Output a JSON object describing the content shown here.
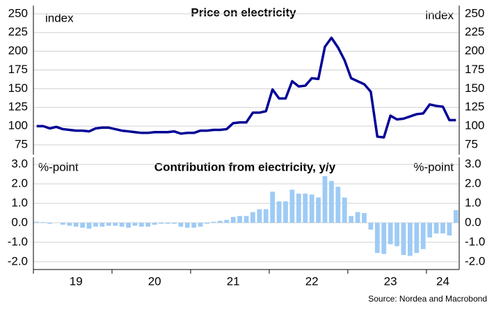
{
  "chart_data": [
    {
      "type": "line",
      "title": "Price on electricity",
      "ylabel": "index",
      "color": "#000096",
      "values": [
        100,
        100,
        97,
        99,
        96,
        95,
        94,
        94,
        93,
        97,
        98,
        98,
        96,
        94,
        93,
        92,
        91,
        91,
        92,
        92,
        92,
        93,
        90,
        91,
        91,
        94,
        94,
        95,
        95,
        96,
        104,
        105,
        105,
        118,
        118,
        120,
        149,
        137,
        137,
        160,
        153,
        154,
        164,
        163,
        206,
        218,
        205,
        188,
        164,
        160,
        156,
        146,
        86,
        85,
        114,
        109,
        110,
        113,
        116,
        117,
        129,
        127,
        126,
        108,
        108
      ],
      "ylim": [
        62,
        261
      ],
      "yticks": [
        75,
        100,
        125,
        150,
        175,
        200,
        225,
        250
      ],
      "grid": true
    },
    {
      "type": "bar",
      "title": "Contribution from electricity, y/y",
      "ylabel": "%-point",
      "color": "#9ecbf5",
      "categories": [
        null,
        null,
        null,
        null,
        null,
        null,
        "19",
        null,
        null,
        null,
        null,
        null,
        null,
        null,
        null,
        null,
        null,
        null,
        "20",
        null,
        null,
        null,
        null,
        null,
        null,
        null,
        null,
        null,
        null,
        null,
        "21",
        null,
        null,
        null,
        null,
        null,
        null,
        null,
        null,
        null,
        null,
        null,
        "22",
        null,
        null,
        null,
        null,
        null,
        null,
        null,
        null,
        null,
        null,
        null,
        "23",
        null,
        null,
        null,
        null,
        null,
        null,
        null,
        "24",
        null,
        null
      ],
      "values": [
        0.05,
        0.03,
        -0.05,
        0,
        -0.1,
        -0.15,
        -0.2,
        -0.25,
        -0.3,
        -0.2,
        -0.2,
        -0.15,
        -0.15,
        -0.2,
        -0.25,
        -0.15,
        -0.2,
        -0.2,
        -0.1,
        -0.05,
        -0.05,
        -0.05,
        -0.2,
        -0.25,
        -0.25,
        -0.2,
        -0.05,
        0.05,
        0.1,
        0.15,
        0.3,
        0.35,
        0.35,
        0.55,
        0.7,
        0.7,
        1.6,
        1.1,
        1.1,
        1.7,
        1.5,
        1.5,
        1.45,
        1.3,
        2.4,
        2.15,
        1.85,
        1.3,
        0.35,
        0.55,
        0.5,
        -0.35,
        -1.55,
        -1.6,
        -1.1,
        -1.2,
        -1.65,
        -1.7,
        -1.55,
        -1.35,
        -0.75,
        -0.55,
        -0.55,
        -0.65,
        0.65
      ],
      "ylim": [
        -2.4,
        3.36
      ],
      "yticks": [
        {
          "value": -2,
          "label": "-2.0"
        },
        {
          "value": -1,
          "label": "-1.0"
        },
        {
          "value": 0,
          "label": "0.0"
        },
        {
          "value": 1,
          "label": "1.0"
        },
        {
          "value": 2,
          "label": "2.0"
        },
        {
          "value": 3,
          "label": "3.0"
        }
      ],
      "grid": true
    }
  ],
  "source": "Source: Nordea and Macrobond"
}
